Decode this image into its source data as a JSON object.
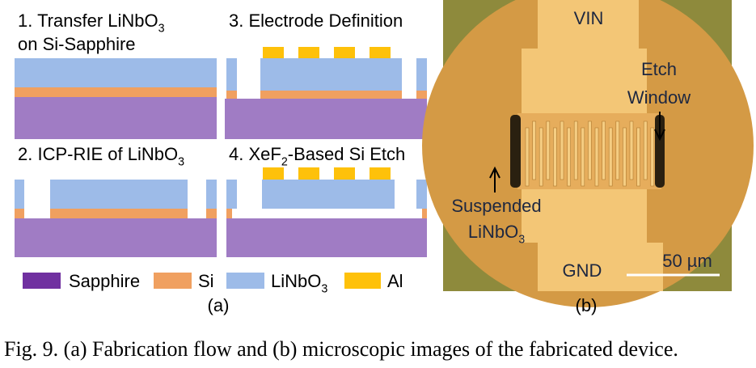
{
  "panel_a": {
    "steps": [
      {
        "label": [
          {
            "t": "1. Transfer LiNbO"
          },
          {
            "sub": "3"
          }
        ],
        "line2": "on Si-Sapphire"
      },
      {
        "label": [
          {
            "t": "2. ICP-RIE of LiNbO"
          },
          {
            "sub": "3"
          }
        ]
      },
      {
        "label": [
          {
            "t": "3. Electrode Definition"
          }
        ]
      },
      {
        "label": [
          {
            "t": "4. XeF"
          },
          {
            "sub": "2"
          },
          {
            "t": "-Based Si Etch"
          }
        ]
      }
    ],
    "legend": [
      {
        "name": [
          {
            "t": "Sapphire"
          }
        ]
      },
      {
        "name": [
          {
            "t": "Si"
          }
        ]
      },
      {
        "name": [
          {
            "t": "LiNbO"
          },
          {
            "sub": "3"
          }
        ]
      },
      {
        "name": [
          {
            "t": "Al"
          }
        ]
      }
    ],
    "caption": "(a)"
  },
  "panel_b": {
    "top_label": "VIN",
    "etch_label": [
      "Etch",
      "Window"
    ],
    "suspended_label": [
      [
        {
          "t": "Suspended"
        }
      ],
      [
        {
          "t": "LiNbO"
        },
        {
          "sub": "3"
        }
      ]
    ],
    "bottom_label": "GND",
    "scale_label": "50 µm",
    "caption": "(b)"
  },
  "figure_caption": "Fig. 9. (a) Fabrication flow and (b) microscopic images of the fabricated device."
}
